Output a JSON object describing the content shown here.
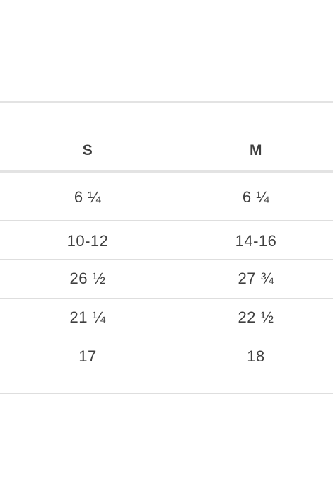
{
  "table": {
    "columns": [
      "S",
      "M"
    ],
    "rows": [
      [
        "6 ¼",
        "6 ¼"
      ],
      [
        "10-12",
        "14-16"
      ],
      [
        "26 ½",
        "27 ¾"
      ],
      [
        "21 ¼",
        "22 ½"
      ],
      [
        "17",
        "18"
      ],
      [
        "",
        ""
      ]
    ]
  },
  "colors": {
    "text": "#3f3f3f",
    "rule": "#e3e3e3",
    "background": "#ffffff"
  }
}
